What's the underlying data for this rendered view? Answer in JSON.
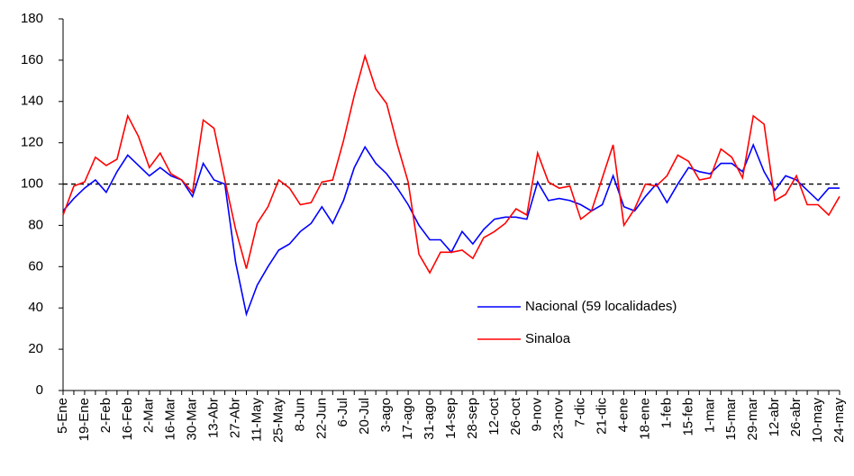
{
  "chart_data": {
    "type": "line",
    "categories": [
      "5-Ene",
      null,
      "19-Ene",
      null,
      "2-Feb",
      null,
      "16-Feb",
      null,
      "2-Mar",
      null,
      "16-Mar",
      null,
      "30-Mar",
      null,
      "13-Abr",
      null,
      "27-Abr",
      null,
      "11-May",
      null,
      "25-May",
      null,
      "8-Jun",
      null,
      "22-Jun",
      null,
      "6-Jul",
      null,
      "20-Jul",
      null,
      "3-ago",
      null,
      "17-ago",
      null,
      "31-ago",
      null,
      "14-sep",
      null,
      "28-sep",
      null,
      "12-oct",
      null,
      "26-oct",
      null,
      "9-nov",
      null,
      "23-nov",
      null,
      "7-dic",
      null,
      "21-dic",
      null,
      "4-ene",
      null,
      "18-ene",
      null,
      "1-feb",
      null,
      "15-feb",
      null,
      "1-mar",
      null,
      "15-mar",
      null,
      "29-mar",
      null,
      "12-abr",
      null,
      "26-abr",
      null,
      "10-may",
      null,
      "24-may"
    ],
    "series": [
      {
        "name": "Nacional (59 localidades)",
        "color": "#0000ff",
        "values": [
          87,
          93,
          98,
          102,
          96,
          106,
          114,
          109,
          104,
          108,
          104,
          102,
          94,
          110,
          102,
          100,
          62,
          37,
          51,
          60,
          68,
          71,
          77,
          81,
          89,
          81,
          92,
          108,
          118,
          110,
          105,
          98,
          90,
          80,
          73,
          73,
          67,
          77,
          71,
          78,
          83,
          84,
          84,
          83,
          101,
          92,
          93,
          92,
          90,
          87,
          90,
          104,
          89,
          87,
          94,
          100,
          91,
          100,
          108,
          106,
          105,
          110,
          110,
          106,
          119,
          106,
          97,
          104,
          102,
          97,
          92,
          98,
          98
        ]
      },
      {
        "name": "Sinaloa",
        "color": "#ff0000",
        "values": [
          85,
          99,
          101,
          113,
          109,
          112,
          133,
          123,
          108,
          115,
          105,
          102,
          96,
          131,
          127,
          102,
          78,
          59,
          81,
          89,
          102,
          98,
          90,
          91,
          101,
          102,
          121,
          143,
          162,
          146,
          139,
          119,
          101,
          66,
          57,
          67,
          67,
          68,
          64,
          74,
          77,
          81,
          88,
          85,
          115,
          101,
          98,
          99,
          83,
          87,
          103,
          119,
          80,
          88,
          100,
          99,
          104,
          114,
          111,
          102,
          103,
          117,
          113,
          103,
          133,
          129,
          92,
          95,
          104,
          90,
          90,
          85,
          94
        ]
      }
    ],
    "ylim": [
      0,
      180
    ],
    "yticks": [
      0,
      20,
      40,
      60,
      80,
      100,
      120,
      140,
      160,
      180
    ],
    "reference_line": 100
  }
}
